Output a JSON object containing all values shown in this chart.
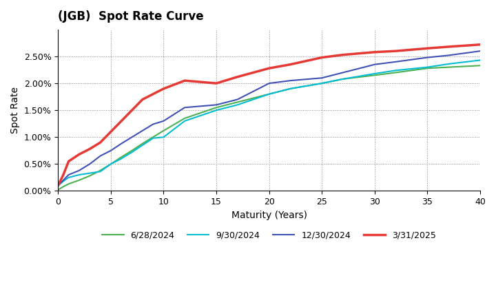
{
  "title": "(JGB)  Spot Rate Curve",
  "xlabel": "Maturity (Years)",
  "ylabel": "Spot Rate",
  "xlim": [
    0,
    40
  ],
  "ylim": [
    0.0,
    0.03
  ],
  "yticks": [
    0.0,
    0.005,
    0.01,
    0.015,
    0.02,
    0.025
  ],
  "xticks": [
    0,
    5,
    10,
    15,
    20,
    25,
    30,
    35,
    40
  ],
  "series": [
    {
      "label": "6/28/2024",
      "color": "#4caf50",
      "linewidth": 1.5,
      "x": [
        0,
        0.5,
        1,
        2,
        3,
        4,
        5,
        6,
        7,
        8,
        9,
        10,
        12,
        15,
        17,
        20,
        22,
        25,
        27,
        30,
        32,
        35,
        37,
        40
      ],
      "y": [
        0.0002,
        0.0008,
        0.0013,
        0.002,
        0.0028,
        0.0038,
        0.005,
        0.0063,
        0.0075,
        0.0088,
        0.01,
        0.0112,
        0.0135,
        0.0155,
        0.0165,
        0.018,
        0.019,
        0.02,
        0.0208,
        0.0215,
        0.022,
        0.0228,
        0.023,
        0.0233
      ]
    },
    {
      "label": "9/30/2024",
      "color": "#00bcd4",
      "linewidth": 1.5,
      "x": [
        0,
        0.5,
        1,
        2,
        3,
        4,
        5,
        6,
        7,
        8,
        9,
        10,
        12,
        15,
        17,
        20,
        22,
        25,
        27,
        30,
        32,
        35,
        37,
        40
      ],
      "y": [
        0.001,
        0.0018,
        0.0025,
        0.003,
        0.0033,
        0.0036,
        0.005,
        0.006,
        0.0072,
        0.0085,
        0.0098,
        0.01,
        0.013,
        0.015,
        0.016,
        0.018,
        0.019,
        0.02,
        0.0208,
        0.0218,
        0.0224,
        0.023,
        0.0236,
        0.0243
      ]
    },
    {
      "label": "12/30/2024",
      "color": "#3f51b5",
      "linewidth": 1.5,
      "x": [
        0,
        0.5,
        1,
        2,
        3,
        4,
        5,
        6,
        7,
        8,
        9,
        10,
        12,
        15,
        17,
        20,
        22,
        25,
        27,
        30,
        32,
        35,
        37,
        40
      ],
      "y": [
        0.001,
        0.002,
        0.003,
        0.0038,
        0.005,
        0.0065,
        0.0075,
        0.0088,
        0.01,
        0.0112,
        0.0124,
        0.013,
        0.0155,
        0.016,
        0.017,
        0.02,
        0.0205,
        0.021,
        0.022,
        0.0235,
        0.024,
        0.0248,
        0.0252,
        0.026
      ]
    },
    {
      "label": "3/31/2025",
      "color": "#e53935",
      "linewidth": 2.5,
      "x": [
        0,
        0.5,
        1,
        2,
        3,
        4,
        5,
        6,
        7,
        8,
        9,
        10,
        12,
        15,
        17,
        20,
        22,
        25,
        27,
        30,
        32,
        35,
        37,
        40
      ],
      "y": [
        0.001,
        0.003,
        0.0055,
        0.0068,
        0.0078,
        0.009,
        0.011,
        0.013,
        0.015,
        0.017,
        0.018,
        0.019,
        0.0205,
        0.02,
        0.0212,
        0.0228,
        0.0235,
        0.0248,
        0.0253,
        0.0258,
        0.026,
        0.0265,
        0.0268,
        0.0272
      ]
    }
  ]
}
